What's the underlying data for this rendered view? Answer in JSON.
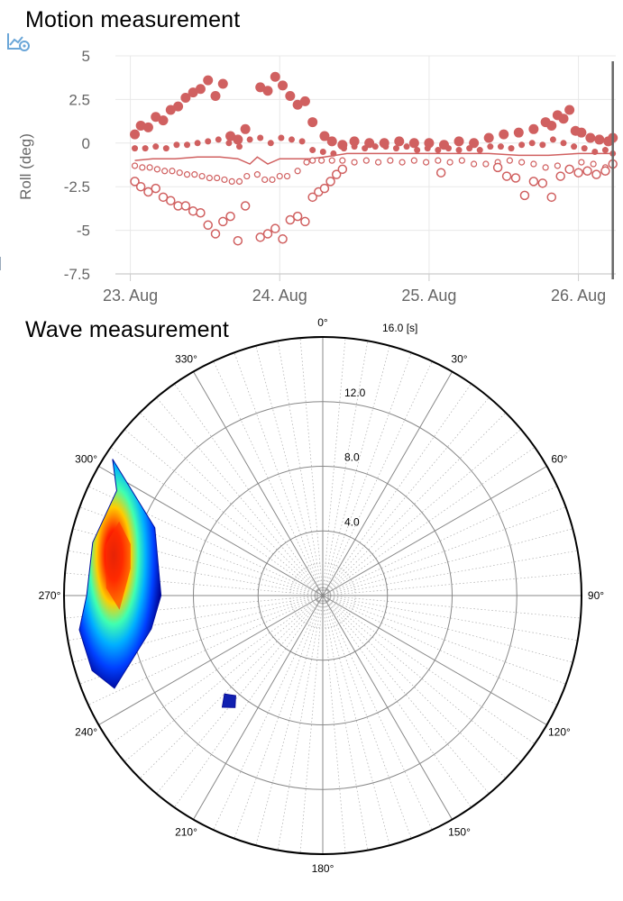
{
  "motion": {
    "title": "Motion measurement",
    "icon": "chart-settings-icon"
  },
  "wave": {
    "title": "Wave measurement"
  },
  "chart_data": [
    {
      "type": "scatter",
      "ylabel": "Roll (deg)",
      "xlabel": "",
      "ylim": [
        -7.5,
        5
      ],
      "yticks": [
        "5",
        "2.5",
        "0",
        "-2.5",
        "-5",
        "-7.5"
      ],
      "xlim_days": [
        22.9,
        26.25
      ],
      "xticks": [
        "23. Aug",
        "24. Aug",
        "25. Aug",
        "26. Aug"
      ],
      "grid": true,
      "color": "#d06060",
      "series": [
        {
          "marker": "large-filled",
          "x": [
            23.03,
            23.07,
            23.12,
            23.17,
            23.22,
            23.27,
            23.32,
            23.37,
            23.42,
            23.47,
            23.52,
            23.57,
            23.62,
            23.67,
            23.72,
            23.77,
            23.87,
            23.92,
            23.97,
            24.02,
            24.07,
            24.12,
            24.17,
            24.22,
            24.3,
            24.35,
            24.42,
            24.5,
            24.6,
            24.7,
            24.8,
            24.9,
            25.0,
            25.1,
            25.2,
            25.3,
            25.4,
            25.5,
            25.6,
            25.7,
            25.78,
            25.82,
            25.86,
            25.9,
            25.94,
            25.98,
            26.02,
            26.08,
            26.14,
            26.2,
            26.23
          ],
          "y": [
            0.5,
            1.0,
            0.9,
            1.5,
            1.3,
            1.9,
            2.1,
            2.6,
            2.9,
            3.1,
            3.6,
            2.7,
            3.4,
            0.4,
            0.2,
            0.8,
            3.2,
            3.0,
            3.8,
            3.3,
            2.7,
            2.2,
            2.4,
            1.2,
            0.4,
            0.1,
            -0.1,
            0.1,
            0.0,
            0.0,
            0.1,
            0.0,
            0.0,
            -0.1,
            0.1,
            0.0,
            0.3,
            0.5,
            0.6,
            0.8,
            1.2,
            1.0,
            1.6,
            1.4,
            1.9,
            0.7,
            0.6,
            0.3,
            0.2,
            0.1,
            0.3
          ]
        },
        {
          "marker": "small-filled",
          "x": [
            23.03,
            23.1,
            23.17,
            23.24,
            23.31,
            23.38,
            23.45,
            23.52,
            23.59,
            23.66,
            23.73,
            23.8,
            23.87,
            23.94,
            24.01,
            24.08,
            24.15,
            24.22,
            24.29,
            24.36,
            24.43,
            24.5,
            24.57,
            24.64,
            24.71,
            24.78,
            24.85,
            24.92,
            24.99,
            25.06,
            25.13,
            25.2,
            25.27,
            25.34,
            25.41,
            25.48,
            25.55,
            25.62,
            25.69,
            25.76,
            25.83,
            25.9,
            25.97,
            26.04,
            26.11,
            26.18,
            26.23
          ],
          "y": [
            -0.3,
            -0.3,
            -0.2,
            -0.3,
            -0.1,
            -0.1,
            0.0,
            0.1,
            0.2,
            0.0,
            -0.2,
            0.2,
            0.3,
            0.0,
            0.3,
            0.2,
            0.1,
            -0.4,
            -0.5,
            -0.6,
            -0.3,
            -0.2,
            -0.3,
            -0.2,
            -0.2,
            -0.3,
            -0.2,
            -0.4,
            -0.3,
            -0.4,
            -0.3,
            -0.4,
            -0.3,
            -0.4,
            -0.2,
            -0.2,
            -0.3,
            -0.1,
            0.0,
            -0.1,
            0.2,
            0.0,
            -0.2,
            -0.3,
            -0.5,
            -0.4,
            -0.6
          ]
        },
        {
          "marker": "line",
          "x": [
            23.03,
            23.15,
            23.3,
            23.45,
            23.6,
            23.72,
            23.8,
            23.85,
            23.92,
            24.0,
            24.1,
            24.2,
            24.3,
            24.45,
            24.6,
            24.8,
            25.0,
            25.2,
            25.4,
            25.6,
            25.8,
            26.0,
            26.23
          ],
          "y": [
            -1.0,
            -0.9,
            -0.9,
            -0.8,
            -0.8,
            -0.9,
            -1.2,
            -0.8,
            -1.2,
            -0.9,
            -0.9,
            -0.9,
            -0.8,
            -0.6,
            -0.6,
            -0.6,
            -0.6,
            -0.6,
            -0.6,
            -0.7,
            -0.7,
            -0.6,
            -0.6
          ]
        },
        {
          "marker": "small-open",
          "x": [
            23.03,
            23.08,
            23.13,
            23.18,
            23.23,
            23.28,
            23.33,
            23.38,
            23.43,
            23.48,
            23.53,
            23.58,
            23.63,
            23.68,
            23.73,
            23.78,
            23.85,
            23.9,
            23.95,
            24.0,
            24.05,
            24.12,
            24.18,
            24.22,
            24.28,
            24.35,
            24.42,
            24.5,
            24.58,
            24.66,
            24.74,
            24.82,
            24.9,
            24.98,
            25.06,
            25.14,
            25.22,
            25.3,
            25.38,
            25.46,
            25.54,
            25.62,
            25.7,
            25.78,
            25.86,
            25.94,
            26.02,
            26.1,
            26.18,
            26.23
          ],
          "y": [
            -1.3,
            -1.4,
            -1.4,
            -1.5,
            -1.6,
            -1.6,
            -1.7,
            -1.8,
            -1.8,
            -1.9,
            -2.0,
            -2.0,
            -2.1,
            -2.2,
            -2.2,
            -1.9,
            -1.8,
            -2.1,
            -2.1,
            -1.9,
            -1.9,
            -1.6,
            -1.1,
            -1.0,
            -1.0,
            -1.0,
            -1.0,
            -1.1,
            -1.0,
            -1.1,
            -1.0,
            -1.1,
            -1.0,
            -1.1,
            -1.0,
            -1.1,
            -1.0,
            -1.2,
            -1.2,
            -1.1,
            -1.0,
            -1.1,
            -1.2,
            -1.4,
            -1.3,
            -1.5,
            -1.1,
            -1.2,
            -1.4,
            -1.3
          ]
        },
        {
          "marker": "large-open",
          "x": [
            23.03,
            23.07,
            23.12,
            23.17,
            23.22,
            23.27,
            23.32,
            23.37,
            23.42,
            23.47,
            23.52,
            23.57,
            23.62,
            23.67,
            23.72,
            23.77,
            23.87,
            23.92,
            23.97,
            24.02,
            24.07,
            24.12,
            24.17,
            24.22,
            24.26,
            24.3,
            24.34,
            24.38,
            24.42,
            25.08,
            25.46,
            25.52,
            25.58,
            25.64,
            25.7,
            25.76,
            25.82,
            25.88,
            25.94,
            26.0,
            26.06,
            26.12,
            26.18,
            26.23
          ],
          "y": [
            -2.2,
            -2.5,
            -2.8,
            -2.6,
            -3.1,
            -3.3,
            -3.6,
            -3.6,
            -3.9,
            -4.0,
            -4.7,
            -5.2,
            -4.5,
            -4.2,
            -5.6,
            -3.6,
            -5.4,
            -5.2,
            -4.9,
            -5.5,
            -4.4,
            -4.2,
            -4.5,
            -3.1,
            -2.8,
            -2.6,
            -2.2,
            -1.8,
            -1.5,
            -1.7,
            -1.4,
            -1.9,
            -2.0,
            -3.0,
            -2.2,
            -2.3,
            -3.1,
            -1.9,
            -1.5,
            -1.7,
            -1.6,
            -1.8,
            -1.6,
            -1.2
          ]
        }
      ],
      "cursor_x": 26.23
    },
    {
      "type": "heatmap",
      "projection": "polar",
      "direction_labels": [
        "0°",
        "30°",
        "60°",
        "90°",
        "120°",
        "150°",
        "180°",
        "210°",
        "240°",
        "270°",
        "300°",
        "330°"
      ],
      "ring_labels": [
        "4.0",
        "8.0",
        "12.0",
        "16.0 [s]"
      ],
      "rmax": 16.0,
      "colormap": "jet"
    }
  ]
}
